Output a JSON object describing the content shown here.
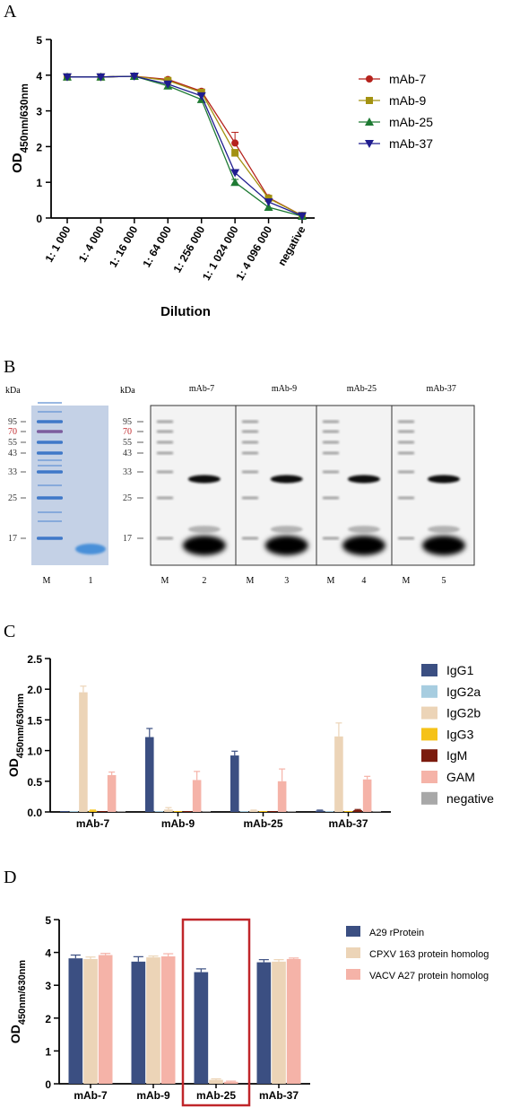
{
  "panels": {
    "a": "A",
    "b": "B",
    "c": "C",
    "d": "D"
  },
  "colors": {
    "mAb-7": "#b5221c",
    "mAb-9": "#a39211",
    "mAb-25": "#1e7a33",
    "mAb-37": "#1f1c8f",
    "IgG1": "#3b4f82",
    "IgG2a": "#a7cde0",
    "IgG2b": "#ecd4b7",
    "IgG3": "#f5c218",
    "IgM": "#7b1b0d",
    "GAM": "#f5b3a8",
    "negative": "#a8a8a8",
    "A29 rProtein": "#3b4f82",
    "CPXV 163 protein homolog": "#ecd4b7",
    "VACV A27 protein homolog": "#f5b3a8",
    "highlight_box": "#c0262a"
  },
  "chart_data": [
    {
      "id": "A",
      "type": "line",
      "xlabel": "Dilution",
      "ylabel_main": "OD",
      "ylabel_sub": "450nm/630nm",
      "categories": [
        "1: 1 000",
        "1: 4 000",
        "1: 16 000",
        "1: 64 000",
        "1: 256 000",
        "1: 1 024 000",
        "1: 4 096 000",
        "negative"
      ],
      "ylim": [
        0,
        5
      ],
      "yticks": [
        "0",
        "1",
        "2",
        "3",
        "4",
        "5"
      ],
      "legend_position": "top-right",
      "series": [
        {
          "name": "mAb-7",
          "marker": "circle",
          "values": [
            3.95,
            3.95,
            3.97,
            3.88,
            3.55,
            2.1,
            0.57,
            0.07
          ],
          "errors": [
            0.03,
            0.03,
            0.03,
            0.05,
            0.06,
            0.3,
            0.05,
            0.03
          ]
        },
        {
          "name": "mAb-9",
          "marker": "square",
          "values": [
            3.95,
            3.95,
            3.97,
            3.85,
            3.52,
            1.82,
            0.55,
            0.07
          ],
          "errors": [
            0.03,
            0.03,
            0.03,
            0.05,
            0.06,
            0.1,
            0.05,
            0.03
          ]
        },
        {
          "name": "mAb-25",
          "marker": "triangle-up",
          "values": [
            3.95,
            3.95,
            3.97,
            3.7,
            3.32,
            1.0,
            0.3,
            0.05
          ],
          "errors": [
            0.03,
            0.03,
            0.03,
            0.05,
            0.05,
            0.08,
            0.04,
            0.02
          ]
        },
        {
          "name": "mAb-37",
          "marker": "triangle-down",
          "values": [
            3.95,
            3.95,
            3.97,
            3.75,
            3.42,
            1.27,
            0.45,
            0.06
          ],
          "errors": [
            0.03,
            0.03,
            0.03,
            0.05,
            0.05,
            0.08,
            0.04,
            0.02
          ]
        }
      ]
    },
    {
      "id": "C",
      "type": "bar",
      "ylabel_main": "OD",
      "ylabel_sub": "450nm/630nm",
      "categories": [
        "mAb-7",
        "mAb-9",
        "mAb-25",
        "mAb-37"
      ],
      "ylim": [
        0,
        2.5
      ],
      "yticks": [
        "0.0",
        "0.5",
        "1.0",
        "1.5",
        "2.0",
        "2.5"
      ],
      "legend_position": "right",
      "series": [
        {
          "name": "IgG1",
          "values": [
            0.01,
            1.22,
            0.92,
            0.02
          ],
          "errors": [
            0.0,
            0.14,
            0.07,
            0.01
          ]
        },
        {
          "name": "IgG2a",
          "values": [
            0.01,
            0.01,
            0.01,
            0.01
          ],
          "errors": [
            0.0,
            0.0,
            0.0,
            0.0
          ]
        },
        {
          "name": "IgG2b",
          "values": [
            1.95,
            0.04,
            0.02,
            1.23
          ],
          "errors": [
            0.1,
            0.03,
            0.01,
            0.22
          ]
        },
        {
          "name": "IgG3",
          "values": [
            0.02,
            0.01,
            0.01,
            0.01
          ],
          "errors": [
            0.01,
            0.0,
            0.0,
            0.0
          ]
        },
        {
          "name": "IgM",
          "values": [
            0.01,
            0.01,
            0.01,
            0.03
          ],
          "errors": [
            0.0,
            0.0,
            0.0,
            0.01
          ]
        },
        {
          "name": "GAM",
          "values": [
            0.6,
            0.52,
            0.5,
            0.53
          ],
          "errors": [
            0.05,
            0.14,
            0.2,
            0.05
          ]
        },
        {
          "name": "negative",
          "values": [
            0.01,
            0.01,
            0.01,
            0.01
          ],
          "errors": [
            0.0,
            0.0,
            0.0,
            0.0
          ]
        }
      ]
    },
    {
      "id": "D",
      "type": "bar",
      "ylabel_main": "OD",
      "ylabel_sub": "450nm/630nm",
      "categories": [
        "mAb-7",
        "mAb-9",
        "mAb-25",
        "mAb-37"
      ],
      "ylim": [
        0,
        5
      ],
      "yticks": [
        "0",
        "1",
        "2",
        "3",
        "4",
        "5"
      ],
      "legend_position": "top-right",
      "highlight_category": "mAb-25",
      "series": [
        {
          "name": "A29 rProtein",
          "values": [
            3.82,
            3.72,
            3.4,
            3.7
          ],
          "errors": [
            0.1,
            0.15,
            0.1,
            0.08
          ]
        },
        {
          "name": "CPXV 163 protein homolog",
          "values": [
            3.8,
            3.85,
            0.12,
            3.72
          ],
          "errors": [
            0.06,
            0.04,
            0.03,
            0.06
          ]
        },
        {
          "name": "VACV A27 protein homolog",
          "values": [
            3.92,
            3.88,
            0.06,
            3.8
          ],
          "errors": [
            0.05,
            0.08,
            0.02,
            0.03
          ]
        }
      ]
    }
  ],
  "blot": {
    "kda_left": "kDa",
    "kda_right": "kDa",
    "markers": [
      "95",
      "70",
      "55",
      "43",
      "33",
      "25",
      "17"
    ],
    "gel_lanes": [
      "M",
      "1"
    ],
    "blot_panels": [
      {
        "title": "mAb-7",
        "lanes": [
          "M",
          "2"
        ]
      },
      {
        "title": "mAb-9",
        "lanes": [
          "M",
          "3"
        ]
      },
      {
        "title": "mAb-25",
        "lanes": [
          "M",
          "4"
        ]
      },
      {
        "title": "mAb-37",
        "lanes": [
          "M",
          "5"
        ]
      }
    ]
  }
}
